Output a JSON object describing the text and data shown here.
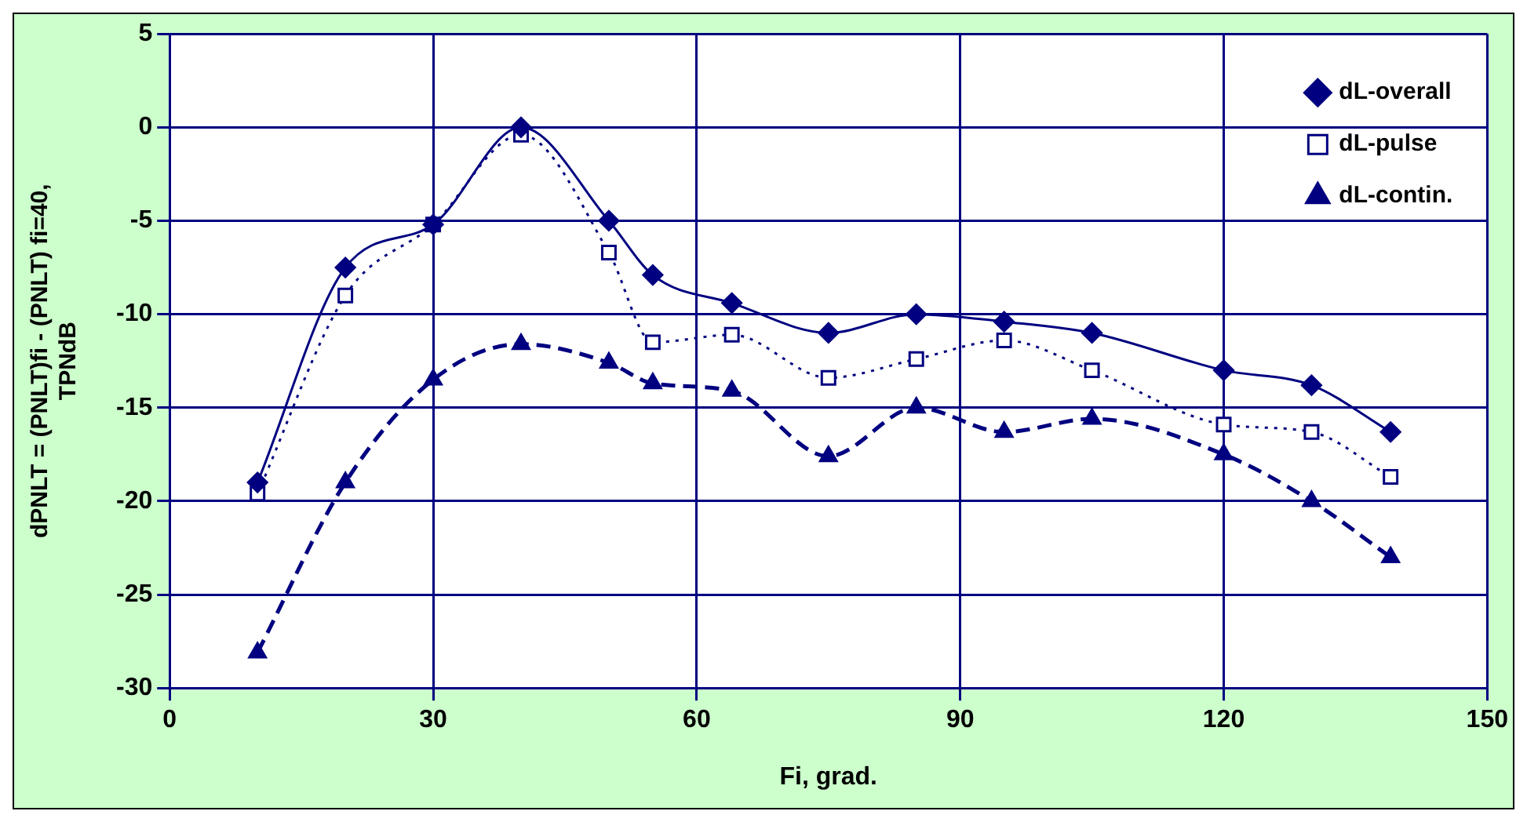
{
  "chart_data": {
    "type": "line",
    "xlabel": "Fi, grad.",
    "ylabel": "dPNLT = (PNLT)fi - (PNLT) fi=40,\nTPNdB",
    "x": [
      10,
      20,
      30,
      40,
      50,
      55,
      64,
      75,
      85,
      95,
      105,
      120,
      130,
      139
    ],
    "xlim": [
      0,
      150
    ],
    "xticks": [
      0,
      30,
      60,
      90,
      120,
      150
    ],
    "ylim": [
      -30,
      5
    ],
    "yticks": [
      -30,
      -25,
      -20,
      -15,
      -10,
      -5,
      0,
      5
    ],
    "grid": true,
    "legend": "top right",
    "series": [
      {
        "name": "dL-overall",
        "color": "#000080",
        "marker": "diamond",
        "line_style": "solid",
        "values": [
          -19,
          -7.5,
          -5.2,
          0,
          -5,
          -7.9,
          -9.4,
          -11,
          -10,
          -10.4,
          -11,
          -13,
          -13.8,
          -16.3
        ]
      },
      {
        "name": "dL-pulse",
        "color": "#000080",
        "marker": "square",
        "line_style": "dotted",
        "values": [
          -19.6,
          -9,
          -5.2,
          -0.4,
          -6.7,
          -11.5,
          -11.1,
          -13.4,
          -12.4,
          -11.4,
          -13,
          -15.9,
          -16.3,
          -18.7
        ]
      },
      {
        "name": "dL-contin.",
        "color": "#000080",
        "marker": "triangle",
        "line_style": "dashed",
        "values": [
          -28.1,
          -19,
          -13.5,
          -11.6,
          -12.6,
          -13.7,
          -14.1,
          -17.6,
          -15,
          -16.3,
          -15.6,
          -17.5,
          -20,
          -23
        ]
      }
    ]
  }
}
